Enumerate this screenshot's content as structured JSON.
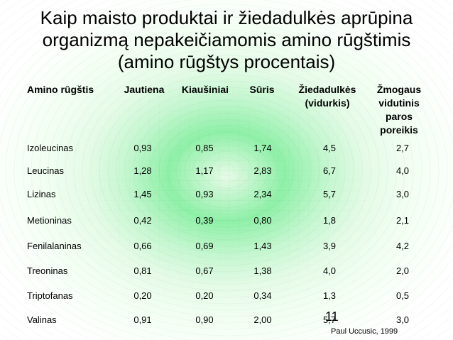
{
  "title_lines": [
    "Kaip maisto produktai ir žiedadulkės aprūpina",
    "organizmą nepakeičiamomis amino rūgštimis",
    "(amino rūgštys procentais)"
  ],
  "columns": [
    "Amino rūgštis",
    "Jautiena",
    "Kiaušiniai",
    "Sūris",
    "Žiedadulkės (vidurkis)",
    "Žmogaus vidutinis paros poreikis"
  ],
  "rows": [
    {
      "name": "Izoleucinas",
      "values": [
        "0,93",
        "0,85",
        "1,74",
        "4,5",
        "2,7"
      ]
    },
    {
      "name": "Leucinas",
      "values": [
        "1,28",
        "1,17",
        "2,83",
        "6,7",
        "4,0"
      ]
    },
    {
      "name": "Lizinas",
      "values": [
        "1,45",
        "0,93",
        "2,34",
        "5,7",
        "3,0"
      ]
    },
    {
      "name": "Metioninas",
      "values": [
        "0,42",
        "0,39",
        "0,80",
        "1,8",
        "2,1"
      ]
    },
    {
      "name": "Fenilalaninas",
      "values": [
        "0,66",
        "0,69",
        "1,43",
        "3,9",
        "4,2"
      ]
    },
    {
      "name": "Treoninas",
      "values": [
        "0,81",
        "0,67",
        "1,38",
        "4,0",
        "2,0"
      ]
    },
    {
      "name": "Triptofanas",
      "values": [
        "0,20",
        "0,20",
        "0,34",
        "1,3",
        "0,5"
      ]
    },
    {
      "name": "Valinas",
      "values": [
        "0,91",
        "0,90",
        "2,00",
        "5,7",
        "3,0"
      ]
    }
  ],
  "slide_number": "11",
  "source": "Paul Uccusic, 1999"
}
